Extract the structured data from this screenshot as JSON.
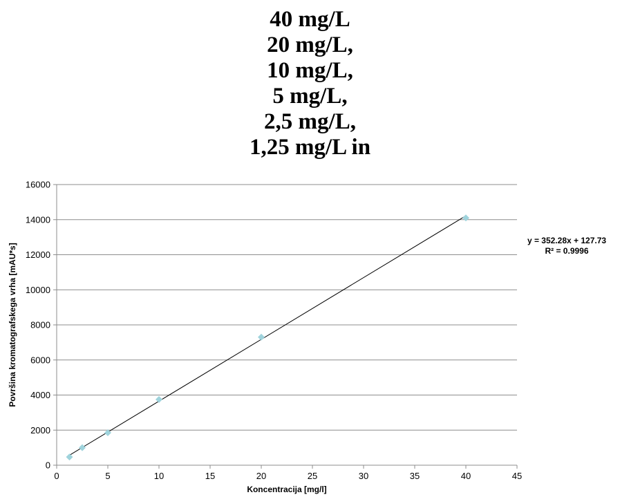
{
  "heading_lines": [
    "40 mg/L",
    "20 mg/L,",
    "10 mg/L,",
    "5 mg/L,",
    "2,5 mg/L,",
    "1,25 mg/L in"
  ],
  "chart_data": {
    "type": "scatter",
    "xlabel": "Koncentracija [mg/l]",
    "ylabel": "Površina kromatografskega vrha [mAU*s]",
    "xlim": [
      0,
      45
    ],
    "ylim": [
      0,
      16000
    ],
    "x_ticks": [
      "0",
      "5",
      "10",
      "15",
      "20",
      "25",
      "30",
      "35",
      "40",
      "45"
    ],
    "y_ticks": [
      "0",
      "2000",
      "4000",
      "6000",
      "8000",
      "10000",
      "12000",
      "14000",
      "16000"
    ],
    "grid": "horizontal",
    "series": [
      {
        "x": [
          1.25,
          2.5,
          5,
          10,
          20,
          40
        ],
        "y": [
          470,
          1000,
          1850,
          3750,
          7300,
          14100
        ],
        "marker": "diamond",
        "color": "#9fd3dc"
      }
    ],
    "trendline": {
      "type": "linear",
      "slope": 352.28,
      "intercept": 127.73,
      "x_range": [
        1.25,
        40
      ],
      "color": "#000000"
    },
    "annotations": {
      "equation": "y = 352.28x + 127.73",
      "r_squared": "R² = 0.9996"
    }
  }
}
